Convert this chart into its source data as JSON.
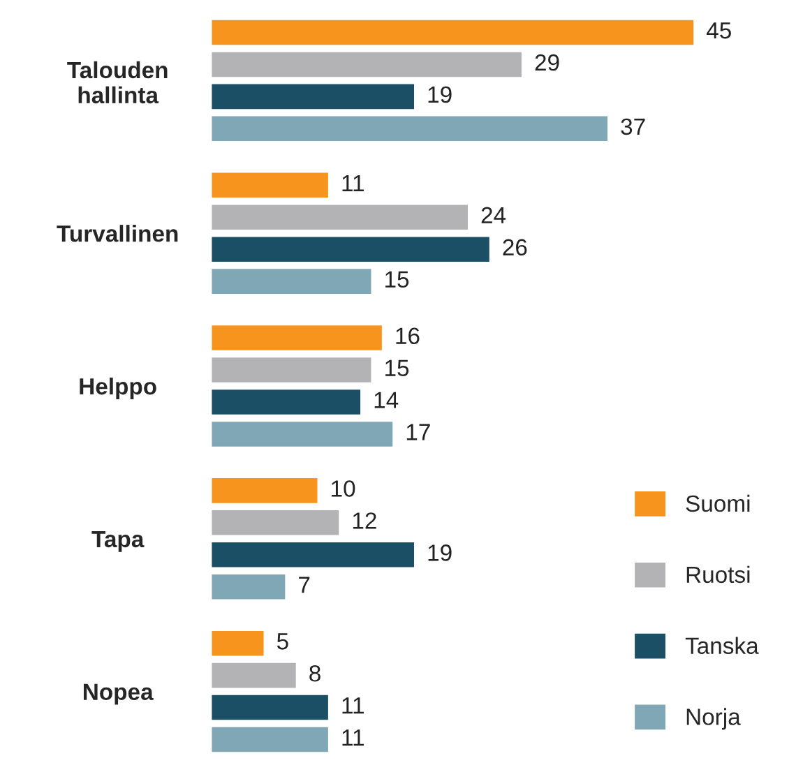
{
  "chart_data": {
    "type": "bar",
    "orientation": "horizontal",
    "categories": [
      "Talouden\nhallinta",
      "Turvallinen",
      "Helppo",
      "Tapa",
      "Nopea"
    ],
    "series": [
      {
        "name": "Suomi",
        "color": "#f7941d",
        "values": [
          45,
          11,
          16,
          10,
          5
        ]
      },
      {
        "name": "Ruotsi",
        "color": "#b3b3b6",
        "values": [
          29,
          24,
          15,
          12,
          8
        ]
      },
      {
        "name": "Tanska",
        "color": "#1b4f66",
        "values": [
          19,
          26,
          14,
          19,
          11
        ]
      },
      {
        "name": "Norja",
        "color": "#7fa7b5",
        "values": [
          37,
          15,
          17,
          7,
          11
        ]
      }
    ],
    "data_labels": true,
    "legend": "bottom right",
    "grid": false,
    "tick_labels": "y"
  }
}
